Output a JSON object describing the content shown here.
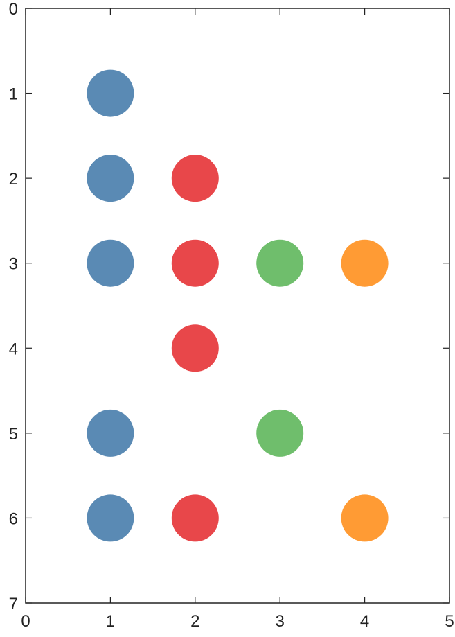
{
  "chart_data": {
    "type": "scatter",
    "title": "",
    "xlabel": "",
    "ylabel": "",
    "xlim": [
      0,
      5
    ],
    "ylim": [
      0,
      7
    ],
    "y_axis_inverted": true,
    "grid": false,
    "x_ticks": [
      "0",
      "1",
      "2",
      "3",
      "4",
      "5"
    ],
    "y_ticks": [
      "0",
      "1",
      "2",
      "3",
      "4",
      "5",
      "6",
      "7"
    ],
    "series": [
      {
        "color": "#5a8ab4",
        "points": [
          {
            "x": 1,
            "y": 1
          },
          {
            "x": 1,
            "y": 2
          },
          {
            "x": 1,
            "y": 3
          },
          {
            "x": 1,
            "y": 5
          },
          {
            "x": 1,
            "y": 6
          }
        ]
      },
      {
        "color": "#e8474a",
        "points": [
          {
            "x": 2,
            "y": 2
          },
          {
            "x": 2,
            "y": 3
          },
          {
            "x": 2,
            "y": 4
          },
          {
            "x": 2,
            "y": 6
          }
        ]
      },
      {
        "color": "#6fbe6c",
        "points": [
          {
            "x": 3,
            "y": 3
          },
          {
            "x": 3,
            "y": 5
          }
        ]
      },
      {
        "color": "#ff9b34",
        "points": [
          {
            "x": 4,
            "y": 3
          },
          {
            "x": 4,
            "y": 6
          }
        ]
      }
    ]
  }
}
